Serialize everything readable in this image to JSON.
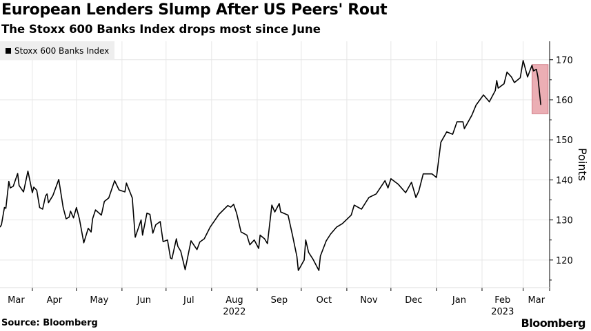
{
  "header": {
    "title": "European Lenders Slump After US Peers' Rout",
    "subtitle": "The Stoxx 600 Banks Index drops most since June"
  },
  "footer": {
    "source": "Source: Bloomberg",
    "logo": "Bloomberg"
  },
  "colors": {
    "line": "#000000",
    "highlight": "#e8a0a8",
    "highlight_border": "#c0505c",
    "grid": "#e6e6e6"
  },
  "chart_data": {
    "type": "line",
    "title": "European Lenders Slump After US Peers' Rout",
    "subtitle": "The Stoxx 600 Banks Index drops most since June",
    "ylabel": "Points",
    "xlabel": "",
    "ylim": [
      113.1,
      174.6
    ],
    "xlim": [
      "2022-03-10",
      "2023-03-19"
    ],
    "y_ticks": [
      120,
      130,
      140,
      150,
      160,
      170
    ],
    "x_tick_labels": [
      "Mar",
      "Apr",
      "May",
      "Jun",
      "Jul",
      "Aug",
      "Sep",
      "Oct",
      "Nov",
      "Dec",
      "Jan",
      "Feb",
      "Mar"
    ],
    "x_tick_months": [
      "2022-03",
      "2022-04",
      "2022-05",
      "2022-06",
      "2022-07",
      "2022-08",
      "2022-09",
      "2022-10",
      "2022-11",
      "2022-12",
      "2023-01",
      "2023-02",
      "2023-03"
    ],
    "year_labels": [
      {
        "label": "2022",
        "month": "2022-08"
      },
      {
        "label": "2023",
        "month": "2023-02"
      }
    ],
    "grid": true,
    "legend_position": "top-left",
    "highlight": {
      "x": [
        "2023-03-07",
        "2023-03-18"
      ],
      "y": [
        156.5,
        168.8
      ]
    },
    "series": [
      {
        "name": "Stoxx 600 Banks Index",
        "x": [
          "2022-03-10",
          "2022-03-11",
          "2022-03-13",
          "2022-03-14",
          "2022-03-16",
          "2022-03-17",
          "2022-03-19",
          "2022-03-22",
          "2022-03-23",
          "2022-03-26",
          "2022-03-29",
          "2022-04-01",
          "2022-04-02",
          "2022-04-04",
          "2022-04-06",
          "2022-04-08",
          "2022-04-10",
          "2022-04-11",
          "2022-04-12",
          "2022-04-15",
          "2022-04-19",
          "2022-04-22",
          "2022-04-24",
          "2022-04-26",
          "2022-04-27",
          "2022-04-29",
          "2022-05-01",
          "2022-05-03",
          "2022-05-06",
          "2022-05-09",
          "2022-05-11",
          "2022-05-12",
          "2022-05-14",
          "2022-05-18",
          "2022-05-20",
          "2022-05-23",
          "2022-05-27",
          "2022-05-30",
          "2022-06-03",
          "2022-06-04",
          "2022-06-08",
          "2022-06-10",
          "2022-06-14",
          "2022-06-15",
          "2022-06-18",
          "2022-06-20",
          "2022-06-22",
          "2022-06-24",
          "2022-06-27",
          "2022-06-29",
          "2022-07-02",
          "2022-07-04",
          "2022-07-05",
          "2022-07-08",
          "2022-07-09",
          "2022-07-11",
          "2022-07-14",
          "2022-07-18",
          "2022-07-22",
          "2022-07-24",
          "2022-07-27",
          "2022-07-31",
          "2022-08-03",
          "2022-08-06",
          "2022-08-12",
          "2022-08-14",
          "2022-08-16",
          "2022-08-18",
          "2022-08-21",
          "2022-08-25",
          "2022-08-27",
          "2022-08-30",
          "2022-09-02",
          "2022-09-03",
          "2022-09-06",
          "2022-09-08",
          "2022-09-11",
          "2022-09-13",
          "2022-09-16",
          "2022-09-17",
          "2022-09-22",
          "2022-09-25",
          "2022-09-28",
          "2022-09-29",
          "2022-10-03",
          "2022-10-04",
          "2022-10-06",
          "2022-10-09",
          "2022-10-13",
          "2022-10-14",
          "2022-10-18",
          "2022-10-21",
          "2022-10-25",
          "2022-10-29",
          "2022-11-04",
          "2022-11-06",
          "2022-11-11",
          "2022-11-16",
          "2022-11-21",
          "2022-11-27",
          "2022-11-29",
          "2022-12-01",
          "2022-12-06",
          "2022-12-11",
          "2022-12-15",
          "2022-12-18",
          "2022-12-20",
          "2022-12-23",
          "2022-12-29",
          "2023-01-01",
          "2023-01-04",
          "2023-01-08",
          "2023-01-12",
          "2023-01-15",
          "2023-01-19",
          "2023-01-20",
          "2023-01-25",
          "2023-01-28",
          "2023-02-02",
          "2023-02-06",
          "2023-02-10",
          "2023-02-11",
          "2023-02-12",
          "2023-02-16",
          "2023-02-18",
          "2023-02-21",
          "2023-02-23",
          "2023-02-27",
          "2023-03-01",
          "2023-03-04",
          "2023-03-07",
          "2023-03-08",
          "2023-03-10",
          "2023-03-11",
          "2023-03-13"
        ],
        "values": [
          128.2,
          128.8,
          133.1,
          132.9,
          139.6,
          138.0,
          138.4,
          141.6,
          138.6,
          137.0,
          142.2,
          136.8,
          138.2,
          137.4,
          133.1,
          132.7,
          136.0,
          136.5,
          134.3,
          136.1,
          140.1,
          133.1,
          130.3,
          130.7,
          132.2,
          130.5,
          133.1,
          130.3,
          124.3,
          127.9,
          127.0,
          130.3,
          132.5,
          131.2,
          134.6,
          135.5,
          139.8,
          137.5,
          137.0,
          139.2,
          135.5,
          125.7,
          130.0,
          126.2,
          131.7,
          131.4,
          126.7,
          128.8,
          129.6,
          124.6,
          125.0,
          120.5,
          120.3,
          125.3,
          123.4,
          122.2,
          117.6,
          124.8,
          122.6,
          124.5,
          125.3,
          128.2,
          129.8,
          131.4,
          133.6,
          133.2,
          133.9,
          131.7,
          127.0,
          126.2,
          123.8,
          125.0,
          122.9,
          126.2,
          125.3,
          124.1,
          133.7,
          132.0,
          134.1,
          132.0,
          131.2,
          126.2,
          120.9,
          117.4,
          120.0,
          125.0,
          121.9,
          120.2,
          117.4,
          121.0,
          124.8,
          126.5,
          128.2,
          129.1,
          131.2,
          133.7,
          132.7,
          135.6,
          136.5,
          139.8,
          138.0,
          140.3,
          138.9,
          136.8,
          139.4,
          135.6,
          137.2,
          141.5,
          141.5,
          140.6,
          149.4,
          152.0,
          151.4,
          154.5,
          154.5,
          152.8,
          156.1,
          158.7,
          161.2,
          159.5,
          162.3,
          164.8,
          162.9,
          164.0,
          166.9,
          165.7,
          164.3,
          165.5,
          169.8,
          165.7,
          168.6,
          167.2,
          167.6,
          165.7,
          158.7
        ]
      }
    ]
  }
}
